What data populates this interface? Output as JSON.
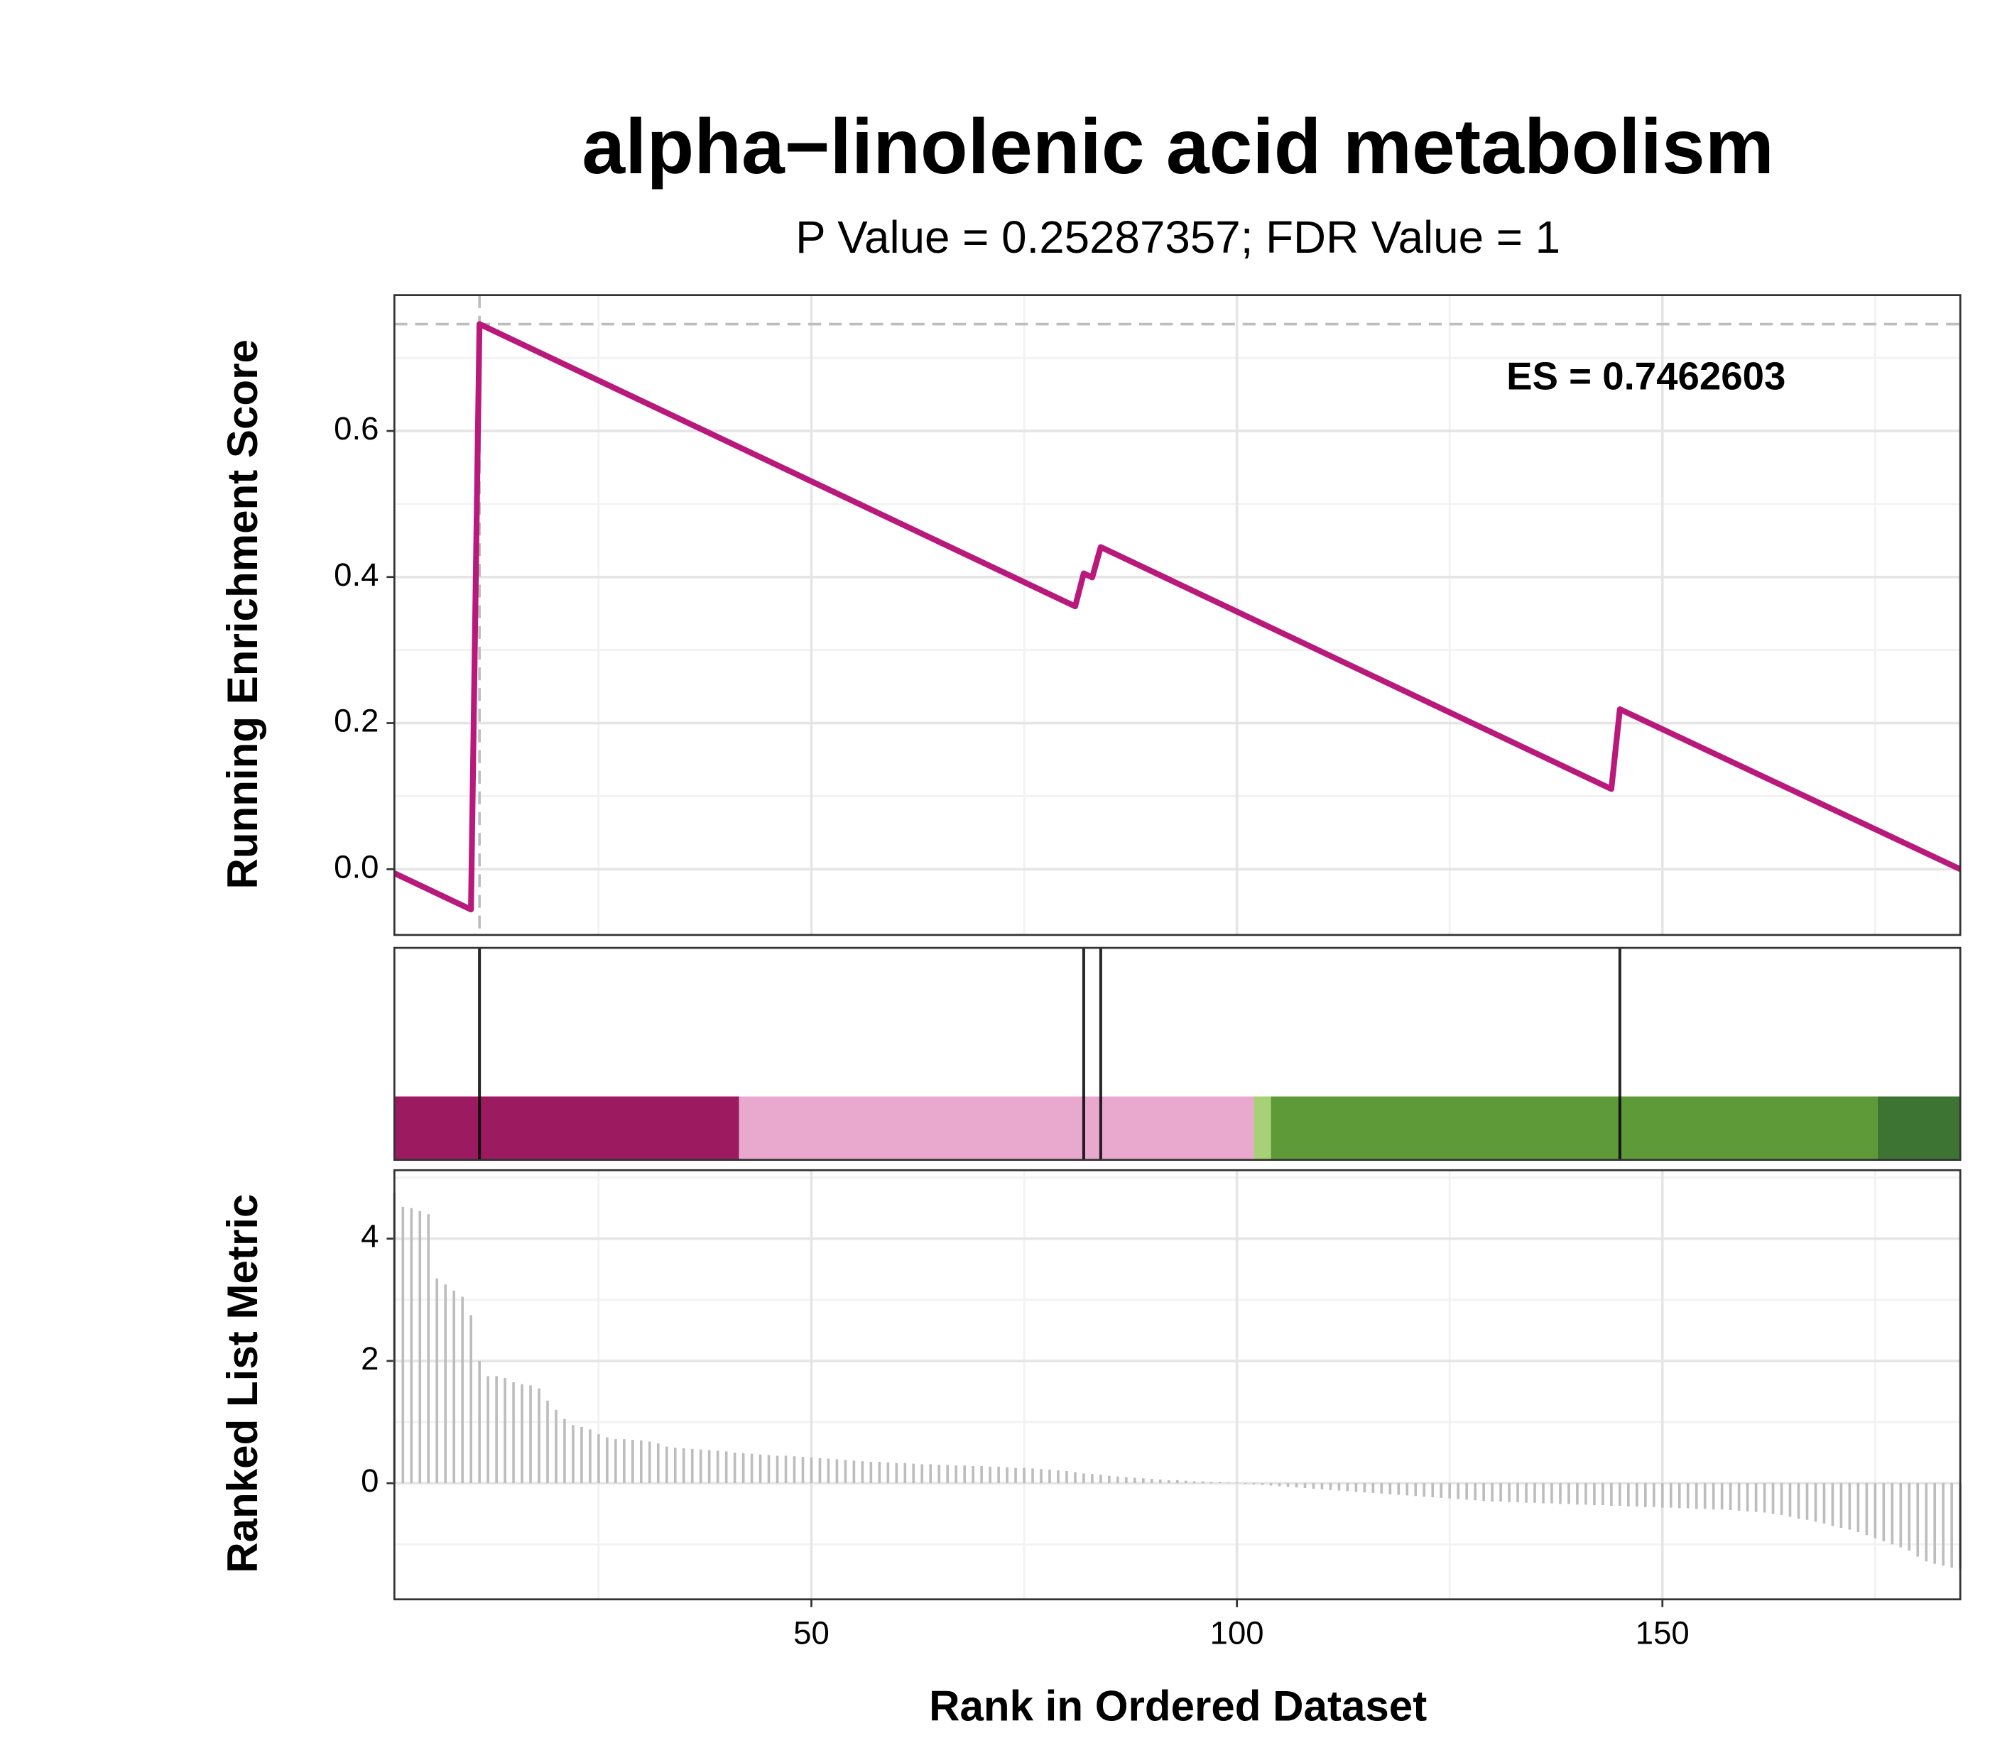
{
  "chart_data": [
    {
      "type": "line",
      "title": "alpha−linolenic acid metabolism",
      "subtitle": "P Value = 0.25287357; FDR Value = 1",
      "ylabel": "Running Enrichment Score",
      "xlim": [
        1,
        185
      ],
      "ylim": [
        -0.09,
        0.786
      ],
      "yticks": [
        {
          "value": 0,
          "label": "0.0"
        },
        0.2,
        0.4,
        0.6
      ],
      "grid": true,
      "series": [
        {
          "color": "#b8197b",
          "x": [
            1,
            10,
            11,
            81,
            82,
            83,
            84,
            144,
            145,
            185
          ],
          "values": [
            -0.0055,
            -0.0552,
            0.7463,
            0.3599,
            0.405,
            0.3995,
            0.441,
            0.1098,
            0.219,
            0
          ]
        }
      ],
      "annotation": {
        "value": 0.7462603,
        "rank": 11,
        "label": "ES = 0.7462603",
        "color": "#9e9e9e"
      }
    },
    {
      "type": "hits",
      "xlim": [
        1,
        185
      ],
      "hits": [
        11,
        82,
        84,
        145
      ],
      "hit_color": "#000000",
      "bands": [
        {
          "start": 1,
          "end": 41.5,
          "color": "#9c1a5f"
        },
        {
          "start": 41.5,
          "end": 102,
          "color": "#e9a9cf"
        },
        {
          "start": 102,
          "end": 104,
          "color": "#a6d176"
        },
        {
          "start": 104,
          "end": 175.3,
          "color": "#5e9a38"
        },
        {
          "start": 175.3,
          "end": 185,
          "color": "#3d7433"
        }
      ]
    },
    {
      "type": "bar",
      "ylabel": "Ranked List Metric",
      "xlabel": "Rank in Ordered Dataset",
      "xlim": [
        1,
        185
      ],
      "xticks": [
        50,
        100,
        150
      ],
      "ylim": [
        -1.9,
        5.12
      ],
      "yticks": [
        0,
        2,
        4
      ],
      "grid": true,
      "color": "#bdbdbd",
      "x": [
        1,
        2,
        3,
        4,
        5,
        6,
        7,
        8,
        9,
        10,
        11,
        12,
        13,
        14,
        15,
        16,
        17,
        18,
        19,
        20,
        21,
        22,
        23,
        24,
        25,
        26,
        27,
        28,
        29,
        30,
        31,
        32,
        33,
        34,
        35,
        36,
        37,
        38,
        39,
        40,
        41,
        42,
        43,
        44,
        45,
        46,
        47,
        48,
        49,
        50,
        51,
        52,
        53,
        54,
        55,
        56,
        57,
        58,
        59,
        60,
        61,
        62,
        63,
        64,
        65,
        66,
        67,
        68,
        69,
        70,
        71,
        72,
        73,
        74,
        75,
        76,
        77,
        78,
        79,
        80,
        81,
        82,
        83,
        84,
        85,
        86,
        87,
        88,
        89,
        90,
        91,
        92,
        93,
        94,
        95,
        96,
        97,
        98,
        99,
        100,
        101,
        102,
        103,
        104,
        105,
        106,
        107,
        108,
        109,
        110,
        111,
        112,
        113,
        114,
        115,
        116,
        117,
        118,
        119,
        120,
        121,
        122,
        123,
        124,
        125,
        126,
        127,
        128,
        129,
        130,
        131,
        132,
        133,
        134,
        135,
        136,
        137,
        138,
        139,
        140,
        141,
        142,
        143,
        144,
        145,
        146,
        147,
        148,
        149,
        150,
        151,
        152,
        153,
        154,
        155,
        156,
        157,
        158,
        159,
        160,
        161,
        162,
        163,
        164,
        165,
        166,
        167,
        168,
        169,
        170,
        171,
        172,
        173,
        174,
        175,
        176,
        177,
        178,
        179,
        180,
        181,
        182,
        183,
        184,
        185
      ],
      "values": [
        4.75,
        4.52,
        4.5,
        4.45,
        4.4,
        3.35,
        3.25,
        3.15,
        3.05,
        2.75,
        2.0,
        1.75,
        1.75,
        1.72,
        1.65,
        1.62,
        1.6,
        1.55,
        1.35,
        1.2,
        1.05,
        0.95,
        0.92,
        0.88,
        0.8,
        0.75,
        0.72,
        0.72,
        0.71,
        0.7,
        0.68,
        0.65,
        0.6,
        0.58,
        0.57,
        0.56,
        0.55,
        0.54,
        0.53,
        0.52,
        0.5,
        0.49,
        0.48,
        0.47,
        0.46,
        0.45,
        0.45,
        0.44,
        0.43,
        0.42,
        0.41,
        0.4,
        0.39,
        0.38,
        0.37,
        0.36,
        0.35,
        0.35,
        0.34,
        0.33,
        0.33,
        0.32,
        0.31,
        0.31,
        0.3,
        0.3,
        0.29,
        0.29,
        0.28,
        0.28,
        0.27,
        0.27,
        0.26,
        0.25,
        0.25,
        0.24,
        0.23,
        0.22,
        0.21,
        0.2,
        0.18,
        0.16,
        0.15,
        0.14,
        0.12,
        0.11,
        0.1,
        0.09,
        0.08,
        0.07,
        0.06,
        0.05,
        0.05,
        0.04,
        0.03,
        0.03,
        0.02,
        0.02,
        0.01,
        0.01,
        -0.01,
        -0.02,
        -0.03,
        -0.04,
        -0.05,
        -0.06,
        -0.07,
        -0.08,
        -0.09,
        -0.1,
        -0.11,
        -0.12,
        -0.13,
        -0.14,
        -0.15,
        -0.16,
        -0.17,
        -0.18,
        -0.19,
        -0.2,
        -0.21,
        -0.22,
        -0.23,
        -0.24,
        -0.25,
        -0.26,
        -0.27,
        -0.28,
        -0.29,
        -0.3,
        -0.3,
        -0.31,
        -0.31,
        -0.32,
        -0.32,
        -0.33,
        -0.33,
        -0.34,
        -0.34,
        -0.35,
        -0.35,
        -0.36,
        -0.36,
        -0.37,
        -0.37,
        -0.38,
        -0.38,
        -0.39,
        -0.39,
        -0.4,
        -0.4,
        -0.41,
        -0.41,
        -0.42,
        -0.42,
        -0.43,
        -0.43,
        -0.44,
        -0.45,
        -0.46,
        -0.47,
        -0.48,
        -0.5,
        -0.52,
        -0.55,
        -0.58,
        -0.6,
        -0.63,
        -0.66,
        -0.7,
        -0.73,
        -0.76,
        -0.8,
        -0.85,
        -0.9,
        -0.95,
        -1.0,
        -1.05,
        -1.1,
        -1.2,
        -1.28,
        -1.32,
        -1.35,
        -1.38,
        -1.4
      ]
    }
  ]
}
